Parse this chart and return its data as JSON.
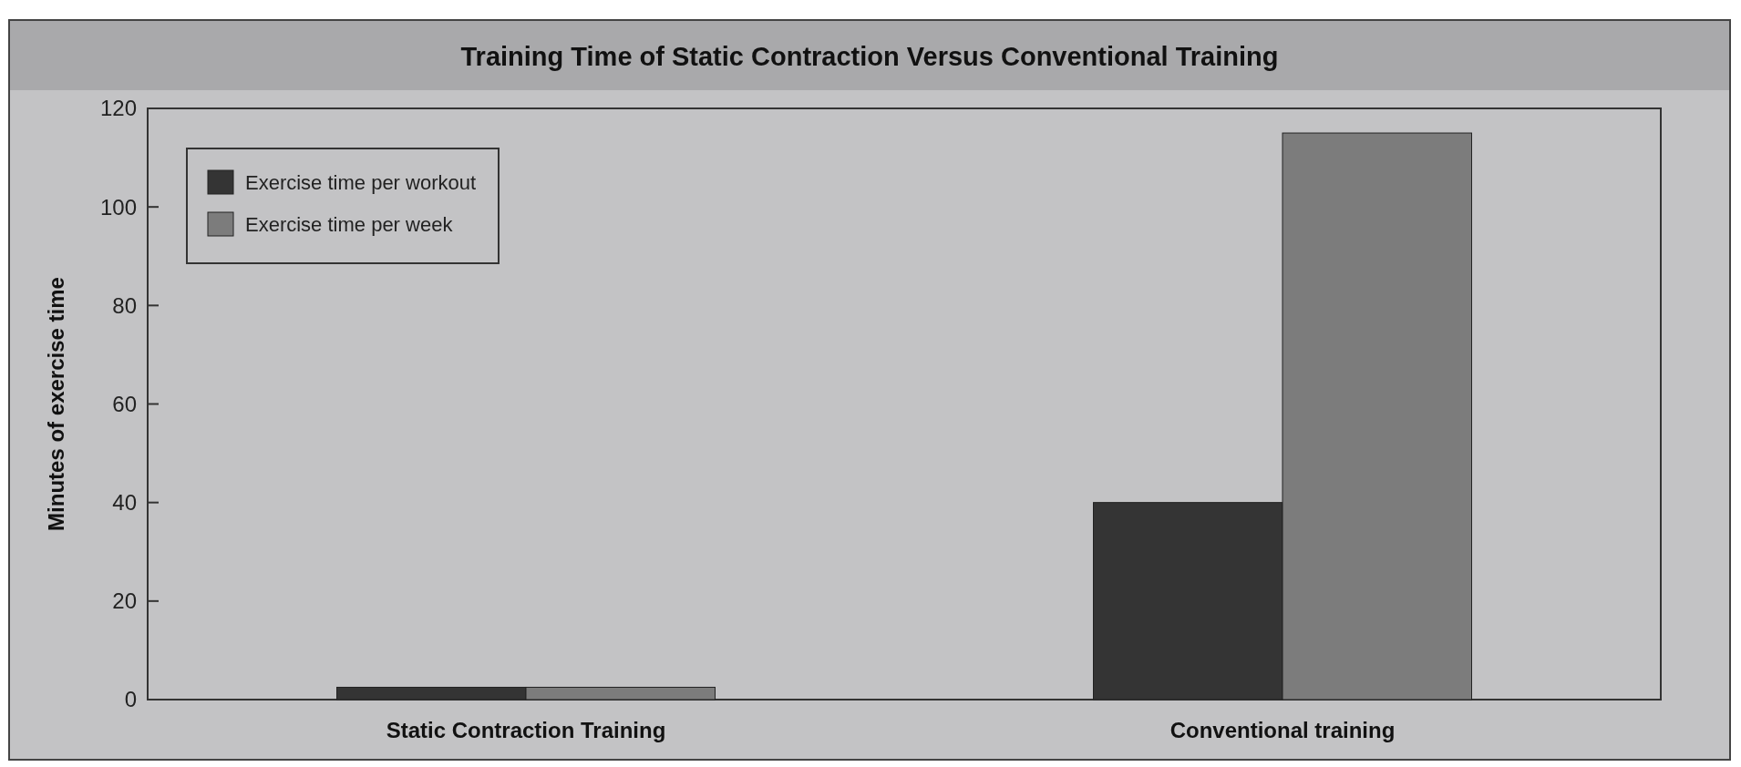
{
  "chart_data": {
    "type": "bar",
    "title": "Training Time of Static Contraction Versus Conventional Training",
    "ylabel": "Minutes of exercise time",
    "categories": [
      "Static Contraction Training",
      "Conventional training"
    ],
    "series": [
      {
        "name": "Exercise time per workout",
        "color": "#343434",
        "values": [
          2.5,
          40
        ]
      },
      {
        "name": "Exercise time per week",
        "color": "#7c7c7c",
        "values": [
          2.5,
          115
        ]
      }
    ],
    "ylim": [
      0,
      120
    ],
    "yticks": [
      0,
      20,
      40,
      60,
      80,
      100,
      120
    ],
    "legend": "top left"
  }
}
